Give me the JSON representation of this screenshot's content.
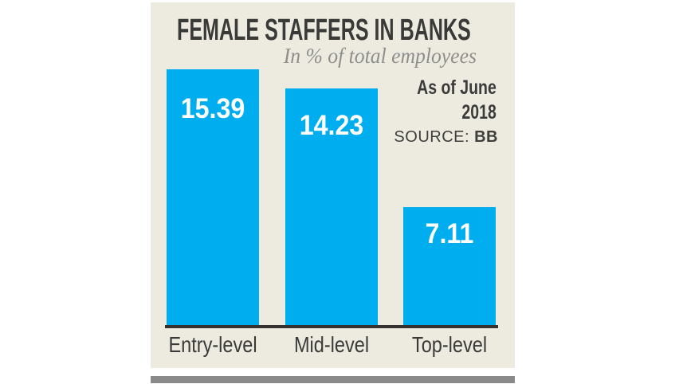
{
  "chart_data": {
    "type": "bar",
    "title": "FEMALE STAFFERS IN BANKS",
    "subtitle": "In % of total employees",
    "categories": [
      "Entry-level",
      "Mid-level",
      "Top-level"
    ],
    "values": [
      15.39,
      14.23,
      7.11
    ],
    "xlabel": "",
    "ylabel": "% of total employees",
    "ylim": [
      0,
      16
    ],
    "grid": false,
    "legend": "none",
    "value_label_position": "inside-top",
    "annotations": {
      "as_of_line1": "As of June",
      "as_of_line2": "2018",
      "source_label": "SOURCE:",
      "source_value": "BB"
    }
  },
  "colors": {
    "page_background": "#ffffff",
    "panel_background": "#edeae0",
    "bar_fill": "#00aeef",
    "value_text": "#ffffff",
    "title_text": "#3a3a38",
    "subtitle_text": "#8e8e8c",
    "axis_line": "#34322e",
    "bottom_strip": "#8a8a8a"
  }
}
